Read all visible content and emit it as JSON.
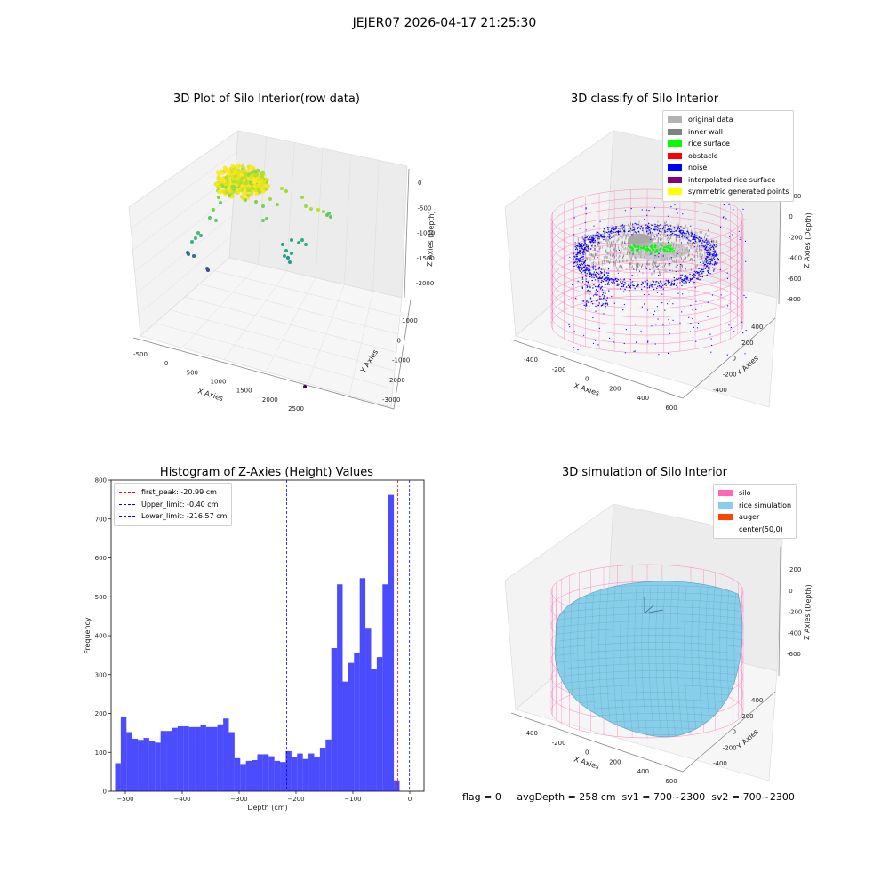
{
  "suptitle": "JEJER07 2026-04-17 21:25:30",
  "panel1": {
    "title": "3D Plot of Silo Interior(row data)",
    "xlabel": "X Axies",
    "ylabel": "Y Axies",
    "zlabel": "Z Axies (Depth)",
    "xticks": [
      "-500",
      "0",
      "500",
      "1000",
      "1500",
      "2000",
      "2500"
    ],
    "yticks": [
      "1000",
      "0",
      "-1000",
      "-2000",
      "-3000"
    ],
    "zticks": [
      "0",
      "-500",
      "-1000",
      "-1500",
      "-2000"
    ]
  },
  "panel2": {
    "title": "3D classify of Silo Interior",
    "xlabel": "X Axies",
    "ylabel": "Y Axies",
    "zlabel": "Z Axies (Depth)",
    "xticks": [
      "-400",
      "-200",
      "0",
      "200",
      "400",
      "600"
    ],
    "yticks": [
      "400",
      "200",
      "0",
      "-200",
      "-400"
    ],
    "zticks": [
      "200",
      "0",
      "-200",
      "-400",
      "-600",
      "-800"
    ],
    "legend": [
      {
        "label": "original data",
        "color": "#b3b3b3"
      },
      {
        "label": "inner wall",
        "color": "#808080"
      },
      {
        "label": "rice surface",
        "color": "#00ff00"
      },
      {
        "label": "obstacle",
        "color": "#ff0000"
      },
      {
        "label": "noise",
        "color": "#0000ff"
      },
      {
        "label": "interpolated rice surface",
        "color": "#800080"
      },
      {
        "label": "symmetric generated points",
        "color": "#ffff00"
      }
    ]
  },
  "panel3": {
    "title": "Histogram of Z-Axies (Height) Values",
    "xlabel": "Depth (cm)",
    "ylabel": "Frequency",
    "legend": [
      {
        "label": "first_peak: -20.99 cm",
        "color": "#ff0000"
      },
      {
        "label": "Upper_limit: -0.40 cm",
        "color": "#0000ff"
      },
      {
        "label": "Lower_limit: -216.57 cm",
        "color": "#0000ff"
      }
    ]
  },
  "panel4": {
    "title": "3D simulation of Silo Interior",
    "xlabel": "X Axies",
    "ylabel": "Y Axies",
    "zlabel": "Z Axies (Depth)",
    "xticks": [
      "-400",
      "-200",
      "0",
      "200",
      "400",
      "600"
    ],
    "yticks": [
      "400",
      "200",
      "0",
      "-200",
      "-400"
    ],
    "zticks": [
      "200",
      "0",
      "-200",
      "-400",
      "-600"
    ],
    "legend": [
      {
        "label": "silo",
        "color": "#ff69b4"
      },
      {
        "label": "rice simulation",
        "color": "#87ceeb"
      },
      {
        "label": "auger",
        "color": "#ff4500"
      },
      {
        "label": "center(50,0)",
        "color": ""
      }
    ]
  },
  "footer": "flag = 0     avgDepth = 258 cm  sv1 = 700~2300  sv2 = 700~2300",
  "chart_data": [
    {
      "type": "scatter",
      "title": "3D Plot of Silo Interior(row data)",
      "xlabel": "X Axies",
      "ylabel": "Y Axies",
      "zlabel": "Z Axies (Depth)",
      "xlim": [
        -500,
        2500
      ],
      "ylim": [
        -3000,
        1000
      ],
      "zlim": [
        -2000,
        0
      ]
    },
    {
      "type": "scatter",
      "title": "3D classify of Silo Interior",
      "xlabel": "X Axies",
      "ylabel": "Y Axies",
      "zlabel": "Z Axies (Depth)",
      "xlim": [
        -400,
        600
      ],
      "ylim": [
        -400,
        400
      ],
      "zlim": [
        -800,
        200
      ]
    },
    {
      "type": "bar",
      "title": "Histogram of Z-Axies (Height) Values",
      "xlabel": "Depth (cm)",
      "ylabel": "Frequency",
      "xlim": [
        -525,
        25
      ],
      "ylim": [
        0,
        800
      ],
      "xticks": [
        -500,
        -400,
        -300,
        -200,
        -100,
        0
      ],
      "yticks": [
        0,
        100,
        200,
        300,
        400,
        500,
        600,
        700,
        800
      ],
      "bin_start": -518,
      "bin_width": 10,
      "values": [
        72,
        192,
        152,
        135,
        132,
        137,
        130,
        125,
        155,
        155,
        163,
        167,
        167,
        165,
        165,
        170,
        165,
        165,
        172,
        187,
        152,
        85,
        70,
        78,
        80,
        95,
        95,
        90,
        78,
        75,
        103,
        88,
        97,
        83,
        97,
        88,
        112,
        133,
        368,
        532,
        282,
        330,
        355,
        548,
        420,
        315,
        345,
        532,
        762,
        28
      ],
      "lines": [
        {
          "name": "first_peak",
          "x": -20.99,
          "color": "#ff0000"
        },
        {
          "name": "Upper_limit",
          "x": -0.4,
          "color": "#0000ff"
        },
        {
          "name": "Lower_limit",
          "x": -216.57,
          "color": "#0000ff"
        }
      ]
    },
    {
      "type": "scatter",
      "title": "3D simulation of Silo Interior",
      "xlabel": "X Axies",
      "ylabel": "Y Axies",
      "zlabel": "Z Axies (Depth)",
      "xlim": [
        -400,
        600
      ],
      "ylim": [
        -400,
        400
      ],
      "zlim": [
        -600,
        200
      ]
    }
  ]
}
